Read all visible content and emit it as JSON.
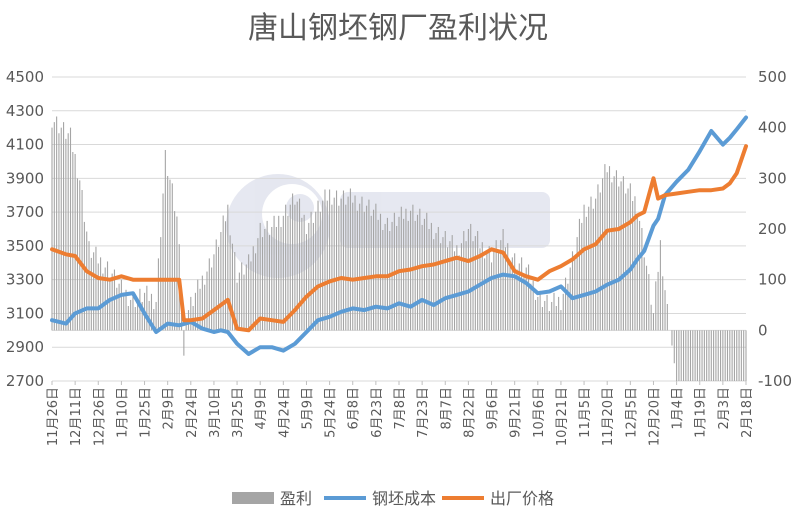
{
  "chart_data": {
    "type": "line",
    "title": "唐山钢坯钢厂盈利状况",
    "y_left": {
      "min": 2700,
      "max": 4500,
      "step": 200,
      "ticks": [
        "4500",
        "4300",
        "4100",
        "3900",
        "3700",
        "3500",
        "3300",
        "3100",
        "2900",
        "2700"
      ]
    },
    "y_right": {
      "min": -100,
      "max": 500,
      "step": 100,
      "ticks": [
        "500",
        "400",
        "300",
        "200",
        "100",
        "0",
        "-100"
      ]
    },
    "x_tick_labels": [
      "11月26日",
      "12月11日",
      "12月26日",
      "1月10日",
      "1月25日",
      "2月9日",
      "2月24日",
      "3月10日",
      "3月25日",
      "4月9日",
      "4月24日",
      "5月9日",
      "5月24日",
      "6月8日",
      "6月23日",
      "7月8日",
      "7月23日",
      "8月7日",
      "8月22日",
      "9月6日",
      "9月21日",
      "10月6日",
      "10月21日",
      "11月5日",
      "11月20日",
      "12月5日",
      "12月20日",
      "1月4日",
      "1月19日",
      "2月3日",
      "2月18日"
    ],
    "legend": [
      "盈利",
      "钢坯成本",
      "出厂价格"
    ],
    "colors": {
      "profit": "#a5a5a5",
      "cost": "#5b9bd5",
      "price": "#ed7d31"
    },
    "series": [
      {
        "name": "钢坯成本",
        "axis": "left",
        "color": "#5b9bd5",
        "x": [
          0,
          0.6,
          1,
          1.5,
          2,
          2.5,
          3,
          3.5,
          4,
          4.5,
          5,
          5.5,
          6,
          6.5,
          7,
          7.3,
          7.6,
          8,
          8.5,
          9,
          9.5,
          10,
          10.5,
          11,
          11.5,
          12,
          12.5,
          13,
          13.5,
          14,
          14.5,
          15,
          15.5,
          16,
          16.5,
          17,
          17.5,
          18,
          18.5,
          19,
          19.5,
          20,
          20.5,
          21,
          21.5,
          22,
          22.5,
          23,
          23.5,
          24,
          24.5,
          25,
          25.3,
          25.6,
          26,
          26.2,
          26.5,
          27,
          27.5,
          28,
          28.5,
          29,
          29.3,
          29.6,
          30
        ],
        "values": [
          3060,
          3040,
          3100,
          3130,
          3130,
          3180,
          3210,
          3220,
          3100,
          2990,
          3040,
          3030,
          3050,
          3010,
          2990,
          3000,
          2990,
          2920,
          2860,
          2900,
          2900,
          2880,
          2920,
          2990,
          3060,
          3080,
          3110,
          3130,
          3120,
          3140,
          3130,
          3160,
          3140,
          3180,
          3150,
          3190,
          3210,
          3230,
          3270,
          3310,
          3330,
          3320,
          3280,
          3220,
          3230,
          3260,
          3190,
          3210,
          3230,
          3270,
          3300,
          3360,
          3420,
          3470,
          3620,
          3660,
          3800,
          3880,
          3950,
          4060,
          4180,
          4100,
          4140,
          4190,
          4260
        ]
      },
      {
        "name": "出厂价格",
        "axis": "left",
        "color": "#ed7d31",
        "x": [
          0,
          0.6,
          1,
          1.5,
          2,
          2.5,
          3,
          3.5,
          4,
          4.5,
          5,
          5.5,
          5.7,
          6,
          6.5,
          7,
          7.3,
          7.6,
          8,
          8.5,
          9,
          9.5,
          10,
          10.5,
          11,
          11.5,
          12,
          12.5,
          13,
          13.5,
          14,
          14.5,
          15,
          15.5,
          16,
          16.5,
          17,
          17.5,
          18,
          18.5,
          19,
          19.5,
          20,
          20.5,
          21,
          21.5,
          22,
          22.5,
          23,
          23.5,
          24,
          24.5,
          25,
          25.3,
          25.6,
          26,
          26.2,
          26.5,
          27,
          27.5,
          28,
          28.5,
          29,
          29.3,
          29.6,
          30
        ],
        "values": [
          3480,
          3450,
          3440,
          3350,
          3310,
          3300,
          3320,
          3300,
          3300,
          3300,
          3300,
          3300,
          3060,
          3060,
          3070,
          3120,
          3150,
          3180,
          3010,
          3000,
          3070,
          3060,
          3050,
          3120,
          3200,
          3260,
          3290,
          3310,
          3300,
          3310,
          3320,
          3320,
          3350,
          3360,
          3380,
          3390,
          3410,
          3430,
          3410,
          3440,
          3480,
          3460,
          3350,
          3320,
          3300,
          3350,
          3380,
          3420,
          3480,
          3510,
          3590,
          3600,
          3640,
          3680,
          3700,
          3900,
          3780,
          3800,
          3810,
          3820,
          3830,
          3830,
          3840,
          3870,
          3930,
          4090
        ]
      },
      {
        "name": "盈利",
        "axis": "right",
        "color": "#a5a5a5",
        "x": [
          0,
          0.8,
          1.2,
          1.6,
          2,
          2.5,
          3,
          3.5,
          4,
          4.5,
          4.9,
          5.2,
          5.5,
          5.7,
          5.8,
          6,
          6.5,
          7,
          7.3,
          7.6,
          8,
          8.5,
          9,
          9.5,
          10,
          10.5,
          11,
          11.5,
          12,
          12.5,
          13,
          13.5,
          14,
          14.5,
          15,
          15.5,
          16,
          16.5,
          17,
          17.5,
          18,
          18.5,
          19,
          19.5,
          20,
          20.5,
          21,
          21.5,
          22,
          22.5,
          23,
          23.5,
          24,
          24.5,
          25,
          25.3,
          25.6,
          26,
          26.3,
          26.6,
          27,
          27.5,
          28,
          28.5,
          29,
          29.5,
          30
        ],
        "values": [
          420,
          380,
          300,
          160,
          140,
          120,
          80,
          60,
          70,
          60,
          340,
          270,
          190,
          -50,
          30,
          50,
          100,
          150,
          190,
          240,
          110,
          130,
          200,
          200,
          230,
          260,
          210,
          240,
          270,
          260,
          260,
          250,
          230,
          210,
          220,
          240,
          220,
          200,
          180,
          160,
          200,
          170,
          150,
          180,
          140,
          120,
          70,
          50,
          60,
          140,
          240,
          260,
          320,
          300,
          270,
          250,
          160,
          30,
          170,
          40,
          -100,
          -100,
          -100,
          -100,
          -100,
          -100,
          -100
        ]
      }
    ]
  }
}
